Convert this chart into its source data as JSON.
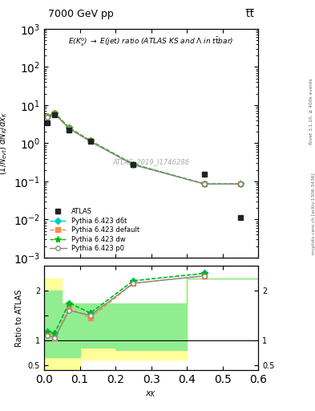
{
  "title_top": "7000 GeV pp",
  "title_top_right": "t̅t̅",
  "annotation": "E(K$^0_s$) \\rightarrow E(jet) ratio (ATLAS KS and \\Lambda in t\\bar{t}bar)",
  "watermark": "ATLAS_2019_I1746286",
  "right_label_top": "Rivet 3.1.10, ≥ 400k events",
  "right_label_bottom": "mcplots.cern.ch [arXiv:1306.3436]",
  "ylabel_main": "$(1/N_{evt})$ $dN_K/dx_K$",
  "ylabel_ratio": "Ratio to ATLAS",
  "xlabel": "$x_K$",
  "xlim": [
    0.0,
    0.6
  ],
  "ylim_main": [
    0.001,
    1000.0
  ],
  "ylim_ratio": [
    0.4,
    2.5
  ],
  "atlas_x": [
    0.01,
    0.03,
    0.07,
    0.13,
    0.25,
    0.45,
    0.55
  ],
  "atlas_y": [
    3.5,
    5.5,
    2.2,
    1.1,
    0.27,
    0.15,
    0.011
  ],
  "d6t_x": [
    0.01,
    0.03,
    0.07,
    0.13,
    0.25,
    0.45,
    0.55
  ],
  "d6t_y": [
    5.0,
    6.0,
    2.5,
    1.15,
    0.28,
    0.085,
    0.085
  ],
  "default_x": [
    0.01,
    0.03,
    0.07,
    0.13,
    0.25,
    0.45,
    0.55
  ],
  "default_y": [
    5.0,
    6.2,
    2.6,
    1.15,
    0.28,
    0.085,
    0.085
  ],
  "dw_x": [
    0.01,
    0.03,
    0.07,
    0.13,
    0.25,
    0.45,
    0.55
  ],
  "dw_y": [
    5.0,
    6.1,
    2.5,
    1.15,
    0.28,
    0.085,
    0.085
  ],
  "p0_x": [
    0.01,
    0.03,
    0.07,
    0.13,
    0.25,
    0.45,
    0.55
  ],
  "p0_y": [
    4.8,
    5.8,
    2.4,
    1.1,
    0.27,
    0.085,
    0.085
  ],
  "d6t_color": "#00CCCC",
  "default_color": "#FF8844",
  "dw_color": "#00BB00",
  "p0_color": "#888888",
  "atlas_color": "#222222",
  "ratio_d6t_x": [
    0.01,
    0.03,
    0.07,
    0.13,
    0.25,
    0.45
  ],
  "ratio_d6t_y": [
    1.18,
    1.15,
    1.75,
    1.55,
    2.2,
    2.35
  ],
  "ratio_default_x": [
    0.01,
    0.03,
    0.07,
    0.13,
    0.25,
    0.45
  ],
  "ratio_default_y": [
    1.15,
    1.05,
    1.65,
    1.45,
    2.15,
    2.3
  ],
  "ratio_dw_x": [
    0.01,
    0.03,
    0.07,
    0.13,
    0.25,
    0.45
  ],
  "ratio_dw_y": [
    1.18,
    1.15,
    1.75,
    1.55,
    2.2,
    2.35
  ],
  "ratio_p0_x": [
    0.01,
    0.03,
    0.07,
    0.13,
    0.25,
    0.45
  ],
  "ratio_p0_y": [
    1.1,
    1.05,
    1.6,
    1.5,
    2.15,
    2.3
  ],
  "green_band_x": [
    0.0,
    0.025,
    0.05,
    0.1,
    0.2,
    0.4,
    0.6
  ],
  "green_band_lo": [
    0.65,
    0.65,
    0.65,
    0.85,
    0.8,
    2.25,
    2.25
  ],
  "green_band_hi": [
    2.0,
    2.0,
    1.75,
    1.75,
    1.75,
    2.25,
    2.25
  ],
  "yellow_band_x": [
    0.0,
    0.025,
    0.05,
    0.1,
    0.2,
    0.4,
    0.6
  ],
  "yellow_band_lo": [
    0.42,
    0.42,
    0.42,
    0.6,
    0.6,
    2.25,
    2.25
  ],
  "yellow_band_hi": [
    2.25,
    2.25,
    1.75,
    1.75,
    1.75,
    2.25,
    2.25
  ],
  "legend_entries": [
    "ATLAS",
    "Pythia 6.423 d6t",
    "Pythia 6.423 default",
    "Pythia 6.423 dw",
    "Pythia 6.423 p0"
  ]
}
